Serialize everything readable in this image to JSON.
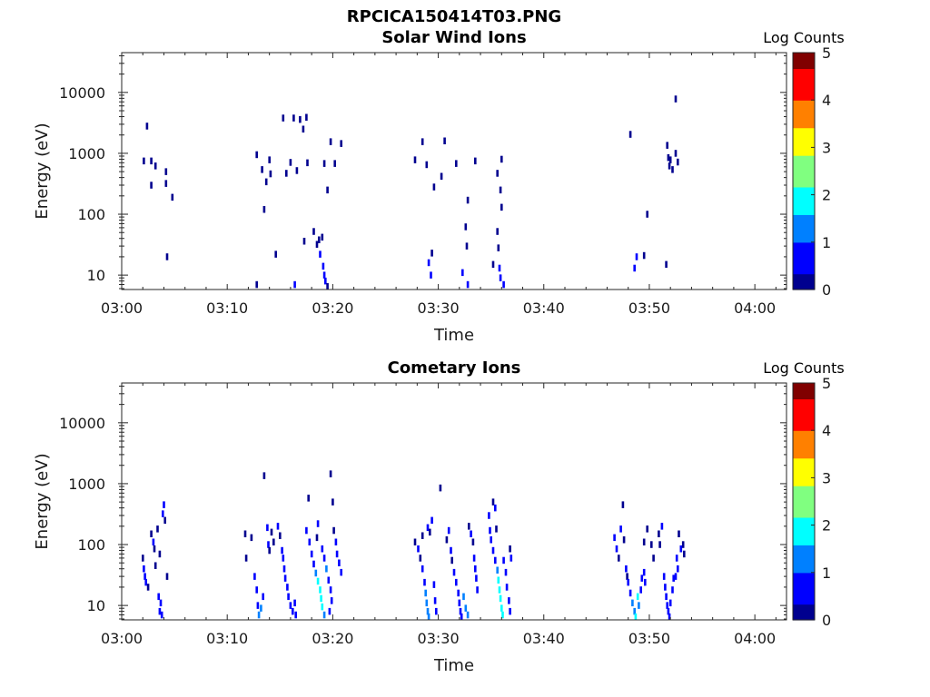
{
  "figure_title": "RPCICA150414T03.PNG",
  "colormap": [
    "#00008f",
    "#0000ff",
    "#0080ff",
    "#00ffff",
    "#80ff80",
    "#ffff00",
    "#ff8000",
    "#ff0000",
    "#800000"
  ],
  "chart_data": [
    {
      "type": "heatmap",
      "title": "Solar Wind Ions",
      "xlabel": "Time",
      "ylabel": "Energy (eV)",
      "x_tick_labels": [
        "03:00",
        "03:10",
        "03:20",
        "03:30",
        "03:40",
        "03:50",
        "04:00"
      ],
      "x_tick_values": [
        0,
        10,
        20,
        30,
        40,
        50,
        60
      ],
      "xlim": [
        0,
        63
      ],
      "y_tick_labels": [
        "10",
        "100",
        "1000",
        "10000"
      ],
      "y_tick_values": [
        10,
        100,
        1000,
        10000
      ],
      "ylim": [
        5.8,
        45000
      ],
      "yscale": "log",
      "colorbar": {
        "title": "Log Counts",
        "ticks": [
          "0",
          "1",
          "2",
          "3",
          "4",
          "5"
        ],
        "range": [
          0,
          5
        ]
      },
      "cells": [
        [
          2.1,
          750,
          0.2
        ],
        [
          2.4,
          2800,
          0.2
        ],
        [
          2.8,
          750,
          0.3
        ],
        [
          2.8,
          300,
          0.2
        ],
        [
          3.2,
          620,
          0.2
        ],
        [
          4.2,
          500,
          0.2
        ],
        [
          4.2,
          320,
          0.2
        ],
        [
          4.3,
          20,
          0.3
        ],
        [
          4.8,
          190,
          0.2
        ],
        [
          12.8,
          950,
          0.2
        ],
        [
          12.8,
          7,
          0.3
        ],
        [
          13.3,
          540,
          0.2
        ],
        [
          13.5,
          120,
          0.2
        ],
        [
          13.7,
          340,
          0.2
        ],
        [
          14.0,
          780,
          0.2
        ],
        [
          14.1,
          460,
          0.2
        ],
        [
          14.6,
          22,
          0.3
        ],
        [
          15.3,
          3800,
          0.2
        ],
        [
          15.6,
          470,
          0.2
        ],
        [
          16.0,
          710,
          0.3
        ],
        [
          16.3,
          3800,
          0.3
        ],
        [
          16.4,
          7,
          0.4
        ],
        [
          16.6,
          520,
          0.2
        ],
        [
          16.9,
          3600,
          0.2
        ],
        [
          17.2,
          2500,
          0.2
        ],
        [
          17.3,
          36,
          0.2
        ],
        [
          17.5,
          3900,
          0.2
        ],
        [
          17.6,
          700,
          0.2
        ],
        [
          18.2,
          52,
          0.2
        ],
        [
          18.5,
          32,
          0.3
        ],
        [
          18.7,
          38,
          0.3
        ],
        [
          18.8,
          22,
          0.4
        ],
        [
          19.0,
          42,
          0.3
        ],
        [
          19.1,
          14,
          0.5
        ],
        [
          19.2,
          10,
          0.4
        ],
        [
          19.3,
          8,
          0.4
        ],
        [
          19.5,
          6.5,
          0.3
        ],
        [
          19.2,
          680,
          0.2
        ],
        [
          19.5,
          250,
          0.2
        ],
        [
          19.8,
          1550,
          0.2
        ],
        [
          20.2,
          680,
          0.2
        ],
        [
          20.8,
          1450,
          0.2
        ],
        [
          27.8,
          780,
          0.3
        ],
        [
          28.5,
          1550,
          0.2
        ],
        [
          28.9,
          650,
          0.2
        ],
        [
          29.1,
          16,
          0.4
        ],
        [
          29.3,
          10,
          0.5
        ],
        [
          29.4,
          23,
          0.3
        ],
        [
          29.6,
          280,
          0.2
        ],
        [
          30.3,
          420,
          0.2
        ],
        [
          30.6,
          1600,
          0.2
        ],
        [
          31.7,
          680,
          0.2
        ],
        [
          32.3,
          11,
          0.5
        ],
        [
          32.6,
          62,
          0.2
        ],
        [
          32.7,
          30,
          0.2
        ],
        [
          32.8,
          170,
          0.2
        ],
        [
          32.8,
          7,
          0.4
        ],
        [
          33.5,
          750,
          0.3
        ],
        [
          35.2,
          15,
          0.3
        ],
        [
          35.6,
          52,
          0.3
        ],
        [
          35.7,
          28,
          0.3
        ],
        [
          35.8,
          13,
          0.6
        ],
        [
          35.9,
          9,
          0.5
        ],
        [
          35.6,
          470,
          0.2
        ],
        [
          35.9,
          250,
          0.2
        ],
        [
          36.0,
          800,
          0.3
        ],
        [
          36.0,
          130,
          0.2
        ],
        [
          36.2,
          7,
          0.4
        ],
        [
          48.2,
          2050,
          0.2
        ],
        [
          48.6,
          13,
          0.6
        ],
        [
          48.8,
          20,
          0.5
        ],
        [
          49.5,
          21,
          0.3
        ],
        [
          49.8,
          100,
          0.2
        ],
        [
          51.7,
          1350,
          0.2
        ],
        [
          51.6,
          15,
          0.3
        ],
        [
          51.8,
          850,
          0.2
        ],
        [
          51.9,
          620,
          0.2
        ],
        [
          52.0,
          780,
          0.3
        ],
        [
          52.2,
          540,
          0.2
        ],
        [
          52.5,
          1000,
          0.2
        ],
        [
          52.5,
          7800,
          0.2
        ],
        [
          52.7,
          720,
          0.2
        ]
      ]
    },
    {
      "type": "heatmap",
      "title": "Cometary Ions",
      "xlabel": "Time",
      "ylabel": "Energy (eV)",
      "x_tick_labels": [
        "03:00",
        "03:10",
        "03:20",
        "03:30",
        "03:40",
        "03:50",
        "04:00"
      ],
      "x_tick_values": [
        0,
        10,
        20,
        30,
        40,
        50,
        60
      ],
      "xlim": [
        0,
        63
      ],
      "y_tick_labels": [
        "10",
        "100",
        "1000",
        "10000"
      ],
      "y_tick_values": [
        10,
        100,
        1000,
        10000
      ],
      "ylim": [
        5.8,
        45000
      ],
      "yscale": "log",
      "colorbar": {
        "title": "Log Counts",
        "ticks": [
          "0",
          "1",
          "2",
          "3",
          "4",
          "5"
        ],
        "range": [
          0,
          5
        ]
      },
      "cells": [
        [
          2.0,
          60,
          0.3
        ],
        [
          2.1,
          40,
          0.4
        ],
        [
          2.2,
          30,
          0.5
        ],
        [
          2.3,
          24,
          0.4
        ],
        [
          2.5,
          20,
          0.3
        ],
        [
          2.8,
          150,
          0.3
        ],
        [
          3.0,
          110,
          0.4
        ],
        [
          3.1,
          85,
          0.3
        ],
        [
          3.2,
          45,
          0.3
        ],
        [
          3.4,
          180,
          0.3
        ],
        [
          3.6,
          70,
          0.3
        ],
        [
          3.5,
          14,
          0.5
        ],
        [
          3.6,
          8,
          0.5
        ],
        [
          3.7,
          11,
          0.4
        ],
        [
          3.8,
          7,
          0.6
        ],
        [
          3.9,
          320,
          0.4
        ],
        [
          4.0,
          450,
          0.4
        ],
        [
          4.1,
          250,
          0.3
        ],
        [
          4.3,
          30,
          0.3
        ],
        [
          11.7,
          150,
          0.3
        ],
        [
          11.8,
          60,
          0.2
        ],
        [
          12.3,
          130,
          0.3
        ],
        [
          12.6,
          30,
          0.4
        ],
        [
          12.8,
          18,
          0.5
        ],
        [
          12.9,
          10,
          0.6
        ],
        [
          13.0,
          7,
          1.3
        ],
        [
          13.2,
          9,
          1.0
        ],
        [
          13.4,
          14,
          0.8
        ],
        [
          13.5,
          1350,
          0.2
        ],
        [
          13.8,
          190,
          0.4
        ],
        [
          13.9,
          100,
          0.4
        ],
        [
          14.0,
          80,
          0.3
        ],
        [
          14.2,
          160,
          0.3
        ],
        [
          14.4,
          110,
          0.3
        ],
        [
          14.8,
          200,
          0.4
        ],
        [
          15.0,
          140,
          0.3
        ],
        [
          15.2,
          80,
          0.4
        ],
        [
          15.3,
          60,
          0.5
        ],
        [
          15.4,
          40,
          0.6
        ],
        [
          15.5,
          28,
          0.5
        ],
        [
          15.7,
          20,
          0.4
        ],
        [
          15.8,
          14,
          0.5
        ],
        [
          16.0,
          10,
          0.6
        ],
        [
          16.2,
          8,
          0.6
        ],
        [
          16.4,
          11,
          0.8
        ],
        [
          16.5,
          7,
          0.7
        ],
        [
          17.5,
          170,
          0.4
        ],
        [
          17.7,
          580,
          0.2
        ],
        [
          17.8,
          110,
          0.4
        ],
        [
          18.0,
          70,
          0.5
        ],
        [
          18.2,
          48,
          0.6
        ],
        [
          18.4,
          34,
          1.4
        ],
        [
          18.6,
          25,
          1.6
        ],
        [
          18.8,
          18,
          2.0
        ],
        [
          18.9,
          13,
          1.8
        ],
        [
          19.0,
          9.5,
          1.6
        ],
        [
          19.2,
          7,
          1.3
        ],
        [
          18.6,
          220,
          0.4
        ],
        [
          18.5,
          130,
          0.3
        ],
        [
          19.0,
          85,
          0.4
        ],
        [
          19.2,
          60,
          0.6
        ],
        [
          19.4,
          40,
          1.2
        ],
        [
          19.6,
          26,
          0.7
        ],
        [
          19.8,
          18,
          0.6
        ],
        [
          19.8,
          1450,
          0.3
        ],
        [
          20.0,
          500,
          0.2
        ],
        [
          20.1,
          170,
          0.3
        ],
        [
          20.3,
          110,
          0.4
        ],
        [
          20.4,
          70,
          0.5
        ],
        [
          20.6,
          50,
          0.4
        ],
        [
          20.8,
          35,
          0.4
        ],
        [
          19.9,
          12,
          0.5
        ],
        [
          19.7,
          8,
          0.4
        ],
        [
          27.8,
          110,
          0.3
        ],
        [
          28.1,
          85,
          0.4
        ],
        [
          28.3,
          60,
          0.3
        ],
        [
          28.5,
          40,
          0.5
        ],
        [
          28.7,
          24,
          0.9
        ],
        [
          28.8,
          16,
          1.3
        ],
        [
          28.9,
          11,
          1.5
        ],
        [
          29.0,
          8,
          1.4
        ],
        [
          29.1,
          6.5,
          1.2
        ],
        [
          28.5,
          140,
          0.3
        ],
        [
          29.0,
          190,
          0.4
        ],
        [
          29.2,
          160,
          0.3
        ],
        [
          29.4,
          250,
          0.4
        ],
        [
          29.6,
          22,
          0.7
        ],
        [
          29.7,
          12,
          0.8
        ],
        [
          29.8,
          8,
          0.9
        ],
        [
          30.2,
          850,
          0.2
        ],
        [
          30.8,
          120,
          0.3
        ],
        [
          31.0,
          170,
          0.4
        ],
        [
          31.2,
          80,
          0.4
        ],
        [
          31.3,
          55,
          0.3
        ],
        [
          31.5,
          35,
          0.5
        ],
        [
          31.7,
          24,
          0.5
        ],
        [
          31.9,
          16,
          0.5
        ],
        [
          32.0,
          11,
          0.6
        ],
        [
          32.1,
          8,
          0.6
        ],
        [
          32.2,
          6.5,
          0.5
        ],
        [
          32.4,
          14,
          1.2
        ],
        [
          32.6,
          9,
          1.5
        ],
        [
          32.8,
          7,
          1.3
        ],
        [
          32.9,
          200,
          0.3
        ],
        [
          33.1,
          150,
          0.4
        ],
        [
          33.3,
          110,
          0.3
        ],
        [
          33.4,
          60,
          0.4
        ],
        [
          33.5,
          40,
          0.5
        ],
        [
          33.6,
          28,
          0.6
        ],
        [
          33.7,
          18,
          0.5
        ],
        [
          34.8,
          300,
          0.4
        ],
        [
          34.9,
          170,
          0.4
        ],
        [
          35.0,
          120,
          0.4
        ],
        [
          35.2,
          500,
          0.3
        ],
        [
          35.2,
          80,
          0.4
        ],
        [
          35.4,
          400,
          0.4
        ],
        [
          35.4,
          55,
          0.5
        ],
        [
          35.5,
          180,
          0.3
        ],
        [
          35.6,
          38,
          1.3
        ],
        [
          35.7,
          26,
          1.6
        ],
        [
          35.8,
          18,
          1.9
        ],
        [
          35.9,
          13,
          2.1
        ],
        [
          36.0,
          9,
          2.0
        ],
        [
          36.1,
          7,
          1.6
        ],
        [
          36.2,
          55,
          0.4
        ],
        [
          36.4,
          35,
          0.5
        ],
        [
          36.5,
          20,
          0.6
        ],
        [
          36.7,
          12,
          0.6
        ],
        [
          36.8,
          8,
          0.5
        ],
        [
          36.8,
          85,
          0.3
        ],
        [
          36.9,
          60,
          0.4
        ],
        [
          46.7,
          130,
          0.4
        ],
        [
          46.9,
          85,
          0.4
        ],
        [
          47.1,
          60,
          0.3
        ],
        [
          47.3,
          180,
          0.4
        ],
        [
          47.5,
          450,
          0.2
        ],
        [
          47.6,
          120,
          0.3
        ],
        [
          47.8,
          40,
          0.4
        ],
        [
          47.9,
          30,
          0.3
        ],
        [
          48.0,
          24,
          0.5
        ],
        [
          48.2,
          16,
          0.8
        ],
        [
          48.4,
          11,
          1.2
        ],
        [
          48.6,
          8,
          1.4
        ],
        [
          48.7,
          6.5,
          1.6
        ],
        [
          48.9,
          14,
          1.7
        ],
        [
          49.0,
          10,
          1.3
        ],
        [
          49.2,
          18,
          0.6
        ],
        [
          49.3,
          28,
          0.4
        ],
        [
          49.5,
          35,
          0.4
        ],
        [
          49.6,
          24,
          0.4
        ],
        [
          49.5,
          110,
          0.3
        ],
        [
          49.8,
          180,
          0.3
        ],
        [
          50.2,
          100,
          0.3
        ],
        [
          50.4,
          60,
          0.3
        ],
        [
          50.9,
          150,
          0.3
        ],
        [
          51.0,
          100,
          0.3
        ],
        [
          51.2,
          200,
          0.4
        ],
        [
          51.4,
          30,
          0.5
        ],
        [
          51.5,
          20,
          0.6
        ],
        [
          51.6,
          14,
          0.8
        ],
        [
          51.7,
          10,
          0.7
        ],
        [
          51.8,
          8,
          0.6
        ],
        [
          51.9,
          6.5,
          0.6
        ],
        [
          52.0,
          11,
          0.5
        ],
        [
          52.2,
          18,
          0.4
        ],
        [
          52.3,
          28,
          0.4
        ],
        [
          52.5,
          30,
          0.5
        ],
        [
          52.6,
          60,
          0.4
        ],
        [
          52.7,
          40,
          0.4
        ],
        [
          52.8,
          150,
          0.3
        ],
        [
          53.0,
          85,
          0.4
        ],
        [
          53.2,
          100,
          0.3
        ],
        [
          53.3,
          70,
          0.3
        ]
      ]
    }
  ]
}
